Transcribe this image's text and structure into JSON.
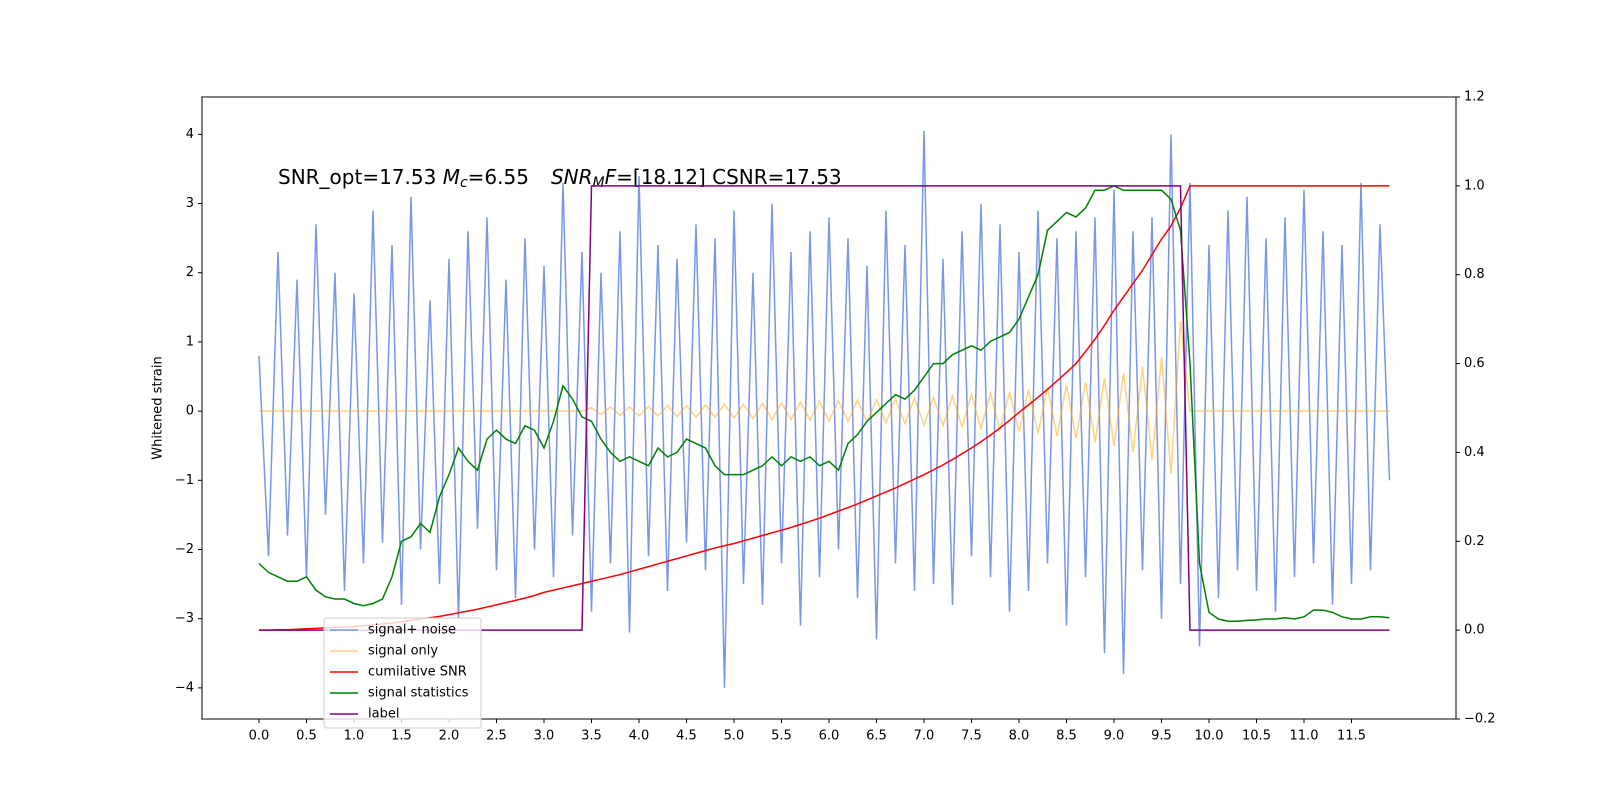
{
  "chart_data": {
    "type": "line",
    "title_parts": [
      "SNR_opt=17.53 ",
      "M",
      "c",
      "=6.55",
      "SNR",
      "M",
      "F",
      "=[18.12] CSNR=17.53"
    ],
    "y_label": "Whitened strain",
    "x": [
      0,
      0.1,
      0.2,
      0.3,
      0.4,
      0.5,
      0.6,
      0.7,
      0.8,
      0.9,
      1,
      1.1,
      1.2,
      1.3,
      1.4,
      1.5,
      1.6,
      1.7,
      1.8,
      1.9,
      2,
      2.1,
      2.2,
      2.3,
      2.4,
      2.5,
      2.6,
      2.7,
      2.8,
      2.9,
      3,
      3.1,
      3.2,
      3.3,
      3.4,
      3.5,
      3.6,
      3.7,
      3.8,
      3.9,
      4,
      4.1,
      4.2,
      4.3,
      4.4,
      4.5,
      4.6,
      4.7,
      4.8,
      4.9,
      5,
      5.1,
      5.2,
      5.3,
      5.4,
      5.5,
      5.6,
      5.7,
      5.8,
      5.9,
      6,
      6.1,
      6.2,
      6.3,
      6.4,
      6.5,
      6.6,
      6.7,
      6.8,
      6.9,
      7,
      7.1,
      7.2,
      7.3,
      7.4,
      7.5,
      7.6,
      7.7,
      7.8,
      7.9,
      8,
      8.1,
      8.2,
      8.3,
      8.4,
      8.5,
      8.6,
      8.7,
      8.8,
      8.9,
      9,
      9.1,
      9.2,
      9.3,
      9.4,
      9.5,
      9.6,
      9.7,
      9.8,
      9.9,
      10,
      10.1,
      10.2,
      10.3,
      10.4,
      10.5,
      10.6,
      10.7,
      10.8,
      10.9,
      11,
      11.1,
      11.2,
      11.3,
      11.4,
      11.5,
      11.6,
      11.7,
      11.8,
      11.9
    ],
    "series": [
      {
        "name": "signal+ noise",
        "color": "#7a96e9",
        "alpha": 1,
        "values": [
          0.8,
          -2.1,
          2.3,
          -1.8,
          1.9,
          -2.4,
          2.7,
          -1.5,
          2.0,
          -2.6,
          1.7,
          -2.2,
          2.9,
          -1.9,
          2.4,
          -2.8,
          3.1,
          -2.0,
          1.6,
          -2.5,
          2.2,
          -3.0,
          2.6,
          -1.7,
          2.8,
          -2.3,
          1.9,
          -2.7,
          2.5,
          -2.0,
          2.1,
          -2.4,
          3.3,
          -1.8,
          2.3,
          -2.9,
          2.0,
          -2.2,
          2.6,
          -3.2,
          3.4,
          -2.1,
          2.4,
          -2.6,
          2.2,
          -1.9,
          2.7,
          -2.3,
          2.5,
          -4.0,
          2.9,
          -2.5,
          2.0,
          -2.8,
          3.0,
          -2.2,
          2.3,
          -3.1,
          2.6,
          -2.4,
          2.8,
          -2.0,
          2.5,
          -2.7,
          2.1,
          -3.3,
          2.9,
          -2.2,
          2.4,
          -2.6,
          4.05,
          -2.5,
          2.2,
          -2.8,
          2.6,
          -2.1,
          3.0,
          -2.4,
          2.7,
          -2.9,
          2.3,
          -2.6,
          2.9,
          -2.2,
          2.5,
          -3.1,
          2.6,
          -2.4,
          2.8,
          -3.5,
          3.2,
          -3.8,
          2.6,
          -2.3,
          2.8,
          -3.0,
          4.0,
          -2.5,
          3.3,
          -3.4,
          2.4,
          -2.7,
          2.9,
          -2.3,
          3.1,
          -2.6,
          2.5,
          -2.9,
          2.8,
          -2.4,
          3.2,
          -2.2,
          2.6,
          -2.8,
          2.4,
          -2.5,
          3.3,
          -2.3,
          2.7,
          -1.0
        ]
      },
      {
        "name": "signal only",
        "color": "#ffa500",
        "alpha": 0.5,
        "values": [
          0,
          0,
          0,
          0,
          0,
          0,
          0,
          0,
          0,
          0,
          0,
          0,
          0,
          0,
          0,
          0,
          0,
          0,
          0,
          0,
          0,
          0,
          0,
          0,
          0,
          0,
          0,
          0,
          0,
          0,
          0,
          0,
          0,
          0,
          0,
          0.05,
          -0.05,
          0.06,
          -0.06,
          0.06,
          -0.07,
          0.07,
          -0.07,
          0.08,
          -0.08,
          0.08,
          -0.09,
          0.09,
          -0.09,
          0.1,
          -0.1,
          0.1,
          -0.11,
          0.11,
          -0.12,
          0.12,
          -0.12,
          0.13,
          -0.13,
          0.14,
          -0.14,
          0.15,
          -0.15,
          0.16,
          -0.16,
          0.17,
          -0.17,
          0.18,
          -0.18,
          0.19,
          -0.2,
          0.2,
          -0.21,
          0.22,
          -0.23,
          0.24,
          -0.25,
          0.26,
          -0.27,
          0.28,
          -0.3,
          0.31,
          -0.32,
          0.34,
          -0.36,
          0.38,
          -0.4,
          0.42,
          -0.45,
          0.48,
          -0.51,
          0.55,
          -0.59,
          0.64,
          -0.7,
          0.78,
          -0.9,
          1.3,
          0,
          0,
          0,
          0,
          0,
          0,
          0,
          0,
          0,
          0,
          0,
          0,
          0,
          0,
          0,
          0,
          0,
          0,
          0,
          0,
          0,
          0
        ]
      },
      {
        "name": "cumilative SNR",
        "color": "#ff0000",
        "alpha": 1,
        "axis": "y2",
        "values": [
          0,
          0,
          0.001,
          0.001,
          0.002,
          0.003,
          0.004,
          0.005,
          0.006,
          0.007,
          0.008,
          0.01,
          0.012,
          0.014,
          0.016,
          0.019,
          0.022,
          0.025,
          0.028,
          0.031,
          0.035,
          0.039,
          0.043,
          0.047,
          0.052,
          0.057,
          0.062,
          0.067,
          0.072,
          0.078,
          0.085,
          0.09,
          0.095,
          0.1,
          0.105,
          0.11,
          0.115,
          0.12,
          0.125,
          0.131,
          0.137,
          0.143,
          0.149,
          0.155,
          0.161,
          0.167,
          0.173,
          0.179,
          0.185,
          0.19,
          0.195,
          0.201,
          0.207,
          0.213,
          0.219,
          0.225,
          0.231,
          0.238,
          0.245,
          0.252,
          0.26,
          0.268,
          0.276,
          0.284,
          0.293,
          0.302,
          0.311,
          0.32,
          0.33,
          0.34,
          0.35,
          0.361,
          0.372,
          0.384,
          0.397,
          0.41,
          0.424,
          0.439,
          0.455,
          0.472,
          0.49,
          0.507,
          0.524,
          0.542,
          0.561,
          0.58,
          0.6,
          0.627,
          0.655,
          0.686,
          0.72,
          0.75,
          0.78,
          0.81,
          0.845,
          0.88,
          0.91,
          0.95,
          1,
          1,
          1,
          1,
          1,
          1,
          1,
          1,
          1,
          1,
          1,
          1,
          1,
          1,
          1,
          1,
          1,
          1,
          1,
          1,
          1,
          1
        ]
      },
      {
        "name": "signal statistics",
        "color": "#008000",
        "alpha": 1,
        "axis": "y2",
        "values": [
          0.15,
          0.13,
          0.12,
          0.11,
          0.11,
          0.12,
          0.09,
          0.075,
          0.07,
          0.07,
          0.06,
          0.055,
          0.06,
          0.07,
          0.12,
          0.2,
          0.21,
          0.24,
          0.22,
          0.3,
          0.35,
          0.41,
          0.38,
          0.36,
          0.43,
          0.45,
          0.43,
          0.42,
          0.46,
          0.45,
          0.41,
          0.47,
          0.55,
          0.52,
          0.48,
          0.47,
          0.43,
          0.4,
          0.38,
          0.39,
          0.38,
          0.37,
          0.41,
          0.39,
          0.4,
          0.43,
          0.42,
          0.41,
          0.37,
          0.35,
          0.35,
          0.35,
          0.36,
          0.37,
          0.39,
          0.37,
          0.39,
          0.38,
          0.39,
          0.37,
          0.38,
          0.36,
          0.42,
          0.44,
          0.47,
          0.49,
          0.51,
          0.53,
          0.52,
          0.54,
          0.57,
          0.6,
          0.6,
          0.62,
          0.63,
          0.64,
          0.63,
          0.65,
          0.66,
          0.67,
          0.7,
          0.75,
          0.8,
          0.9,
          0.92,
          0.94,
          0.93,
          0.95,
          0.99,
          0.99,
          1,
          0.99,
          0.99,
          0.99,
          0.99,
          0.99,
          0.97,
          0.9,
          0.6,
          0.15,
          0.04,
          0.025,
          0.02,
          0.02,
          0.022,
          0.023,
          0.025,
          0.025,
          0.028,
          0.025,
          0.03,
          0.045,
          0.045,
          0.04,
          0.03,
          0.025,
          0.025,
          0.03,
          0.03,
          0.028
        ]
      },
      {
        "name": "label",
        "color": "#800080",
        "alpha": 1,
        "axis": "y2",
        "values": [
          0,
          0,
          0,
          0,
          0,
          0,
          0,
          0,
          0,
          0,
          0,
          0,
          0,
          0,
          0,
          0,
          0,
          0,
          0,
          0,
          0,
          0,
          0,
          0,
          0,
          0,
          0,
          0,
          0,
          0,
          0,
          0,
          0,
          0,
          0,
          1,
          1,
          1,
          1,
          1,
          1,
          1,
          1,
          1,
          1,
          1,
          1,
          1,
          1,
          1,
          1,
          1,
          1,
          1,
          1,
          1,
          1,
          1,
          1,
          1,
          1,
          1,
          1,
          1,
          1,
          1,
          1,
          1,
          1,
          1,
          1,
          1,
          1,
          1,
          1,
          1,
          1,
          1,
          1,
          1,
          1,
          1,
          1,
          1,
          1,
          1,
          1,
          1,
          1,
          1,
          1,
          1,
          1,
          1,
          1,
          1,
          1,
          1,
          0,
          0,
          0,
          0,
          0,
          0,
          0,
          0,
          0,
          0,
          0,
          0,
          0,
          0,
          0,
          0,
          0,
          0,
          0,
          0,
          0,
          0
        ]
      }
    ],
    "xlim": [
      -0.6,
      12.6
    ],
    "xticks": [
      {
        "value": 0,
        "label": "0.0"
      },
      0.5,
      {
        "value": 1,
        "label": "1.0"
      },
      1.5,
      {
        "value": 2,
        "label": "2.0"
      },
      2.5,
      {
        "value": 3,
        "label": "3.0"
      },
      3.5,
      {
        "value": 4,
        "label": "4.0"
      },
      4.5,
      {
        "value": 5,
        "label": "5.0"
      },
      5.5,
      {
        "value": 6,
        "label": "6.0"
      },
      6.5,
      {
        "value": 7,
        "label": "7.0"
      },
      7.5,
      {
        "value": 8,
        "label": "8.0"
      },
      8.5,
      {
        "value": 9,
        "label": "9.0"
      },
      9.5,
      {
        "value": 10,
        "label": "10.0"
      },
      10.5,
      {
        "value": 11,
        "label": "11.0"
      },
      11.5
    ],
    "ylim": [
      -4.45,
      4.54
    ],
    "yticks": [
      {
        "value": -4,
        "label": "−4"
      },
      {
        "value": -3,
        "label": "−3"
      },
      {
        "value": -2,
        "label": "−2"
      },
      {
        "value": -1,
        "label": "−1"
      },
      0,
      1,
      2,
      3,
      4
    ],
    "y2lim": [
      -0.2,
      1.2
    ],
    "y2ticks": [
      {
        "value": -0.2,
        "label": "−0.2"
      },
      {
        "value": 0,
        "label": "0.0"
      },
      0.2,
      0.4,
      0.6,
      0.8,
      {
        "value": 1,
        "label": "1.0"
      },
      1.2
    ],
    "grid": false,
    "legend": "lower left"
  }
}
